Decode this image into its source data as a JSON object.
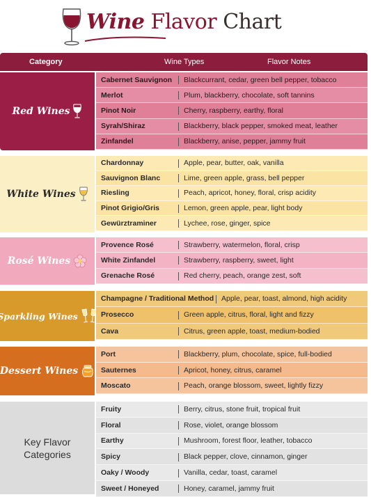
{
  "title": {
    "word1": "Wine",
    "word2": "Flavor",
    "word3": "Chart"
  },
  "header": {
    "category": "Category",
    "wine_types": "Wine Types",
    "flavor_notes": "Flavor Notes"
  },
  "sections": [
    {
      "label": "Red Wines",
      "icon": "wine-glass-icon",
      "rows": [
        {
          "wine": "Cabernet Sauvignon",
          "notes": "Blackcurrant, cedar, green bell pepper, tobacco"
        },
        {
          "wine": "Merlot",
          "notes": "Plum, blackberry, chocolate, soft tannins"
        },
        {
          "wine": "Pinot Noir",
          "notes": "Cherry, raspberry, earthy, floral"
        },
        {
          "wine": "Syrah/Shiraz",
          "notes": "Blackberry, black pepper, smoked meat, leather"
        },
        {
          "wine": "Zinfandel",
          "notes": "Blackberry, anise, pepper, jammy fruit"
        }
      ]
    },
    {
      "label": "White Wines",
      "icon": "white-wine-glass-icon",
      "rows": [
        {
          "wine": "Chardonnay",
          "notes": "Apple, pear, butter, oak, vanilla"
        },
        {
          "wine": "Sauvignon Blanc",
          "notes": "Lime, green apple, grass, bell pepper"
        },
        {
          "wine": "Riesling",
          "notes": "Peach, apricot, honey, floral, crisp acidity"
        },
        {
          "wine": "Pinot Grigio/Gris",
          "notes": "Lemon, green apple, pear, light body"
        },
        {
          "wine": "Gewürztraminer",
          "notes": "Lychee, rose, ginger, spice"
        }
      ]
    },
    {
      "label": "Rosé Wines",
      "icon": "flower-icon",
      "rows": [
        {
          "wine": "Provence Rosé",
          "notes": "Strawberry, watermelon, floral, crisp"
        },
        {
          "wine": "White Zinfandel",
          "notes": "Strawberry, raspberry, sweet, light"
        },
        {
          "wine": "Grenache Rosé",
          "notes": "Red cherry, peach, orange zest, soft"
        }
      ]
    },
    {
      "label": "Sparkling Wines",
      "icon": "champagne-glasses-icon",
      "rows": [
        {
          "wine": "Champagne / Traditional Method",
          "notes": "Apple, pear, toast, almond, high acidity"
        },
        {
          "wine": "Prosecco",
          "notes": "Green apple, citrus, floral, light and fizzy"
        },
        {
          "wine": "Cava",
          "notes": "Citrus, green apple, toast, medium-bodied"
        }
      ]
    },
    {
      "label": "Dessert Wines",
      "icon": "honey-jar-icon",
      "rows": [
        {
          "wine": "Port",
          "notes": "Blackberry, plum, chocolate, spice, full-bodied"
        },
        {
          "wine": "Sauternes",
          "notes": "Apricot, honey, citrus, caramel"
        },
        {
          "wine": "Moscato",
          "notes": "Peach, orange blossom, sweet, lightly fizzy"
        }
      ]
    },
    {
      "label_line1": "Key Flavor",
      "label_line2": "Categories",
      "rows": [
        {
          "wine": "Fruity",
          "notes": "Berry, citrus, stone fruit, tropical fruit"
        },
        {
          "wine": "Floral",
          "notes": "Rose, violet, orange blossom"
        },
        {
          "wine": "Earthy",
          "notes": "Mushroom, forest floor, leather, tobacco"
        },
        {
          "wine": "Spicy",
          "notes": "Black pepper, clove, cinnamon, ginger"
        },
        {
          "wine": "Oaky / Woody",
          "notes": "Vanilla, cedar, toast, caramel"
        },
        {
          "wine": "Sweet / Honeyed",
          "notes": "Honey, caramel, jammy fruit"
        }
      ]
    }
  ],
  "colors": {
    "header": "#8c1d3c",
    "red_cat": "#9a1e45",
    "red_row": "#e07f98",
    "white_cat": "#fbefc6",
    "white_row": "#fce9b4",
    "rose_cat": "#f1a9bd",
    "rose_row": "#f6bfce",
    "sparkling_cat": "#d99a2c",
    "sparkling_row": "#f1c97a",
    "dessert_cat": "#d56f1f",
    "dessert_row": "#f6c49c",
    "key_cat": "#dcdcdc",
    "key_row": "#e9e9e9"
  }
}
